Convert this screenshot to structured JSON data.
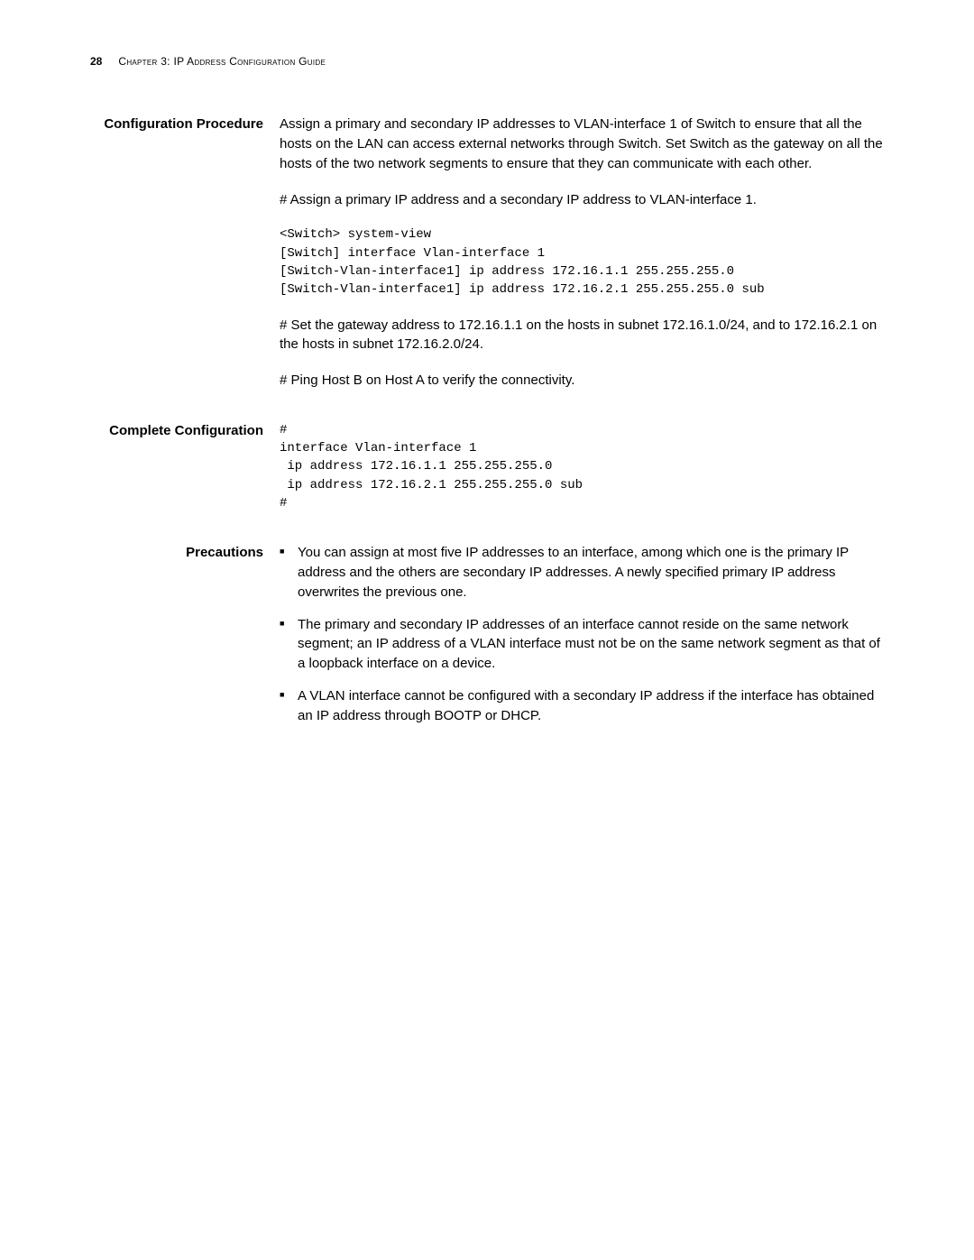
{
  "header": {
    "page_number": "28",
    "chapter_label": "Chapter 3: IP Address Configuration Guide"
  },
  "sections": {
    "config_procedure": {
      "label": "Configuration Procedure",
      "intro": "Assign a primary and secondary IP addresses to VLAN-interface 1 of Switch to ensure that all the hosts on the LAN can access external networks through Switch. Set Switch as the gateway on all the hosts of the two network segments to ensure that they can communicate with each other.",
      "step1": "# Assign a primary IP address and a secondary IP address to VLAN-interface 1.",
      "code1": "<Switch> system-view\n[Switch] interface Vlan-interface 1\n[Switch-Vlan-interface1] ip address 172.16.1.1 255.255.255.0\n[Switch-Vlan-interface1] ip address 172.16.2.1 255.255.255.0 sub",
      "step2": "# Set the gateway address to 172.16.1.1 on the hosts in subnet 172.16.1.0/24, and to 172.16.2.1 on the hosts in subnet 172.16.2.0/24.",
      "step3": "# Ping Host B on Host A to verify the connectivity."
    },
    "complete_config": {
      "label": "Complete Configuration",
      "code": "#\ninterface Vlan-interface 1\n ip address 172.16.1.1 255.255.255.0\n ip address 172.16.2.1 255.255.255.0 sub\n#"
    },
    "precautions": {
      "label": "Precautions",
      "items": [
        "You can assign at most five IP addresses to an interface, among which one is the primary IP address and the others are secondary IP addresses. A newly specified primary IP address overwrites the previous one.",
        "The primary and secondary IP addresses of an interface cannot reside on the same network segment; an IP address of a VLAN interface must not be on the same network segment as that of a loopback interface on a device.",
        "A VLAN interface cannot be configured with a secondary IP address if the interface has obtained an IP address through BOOTP or DHCP."
      ]
    }
  }
}
